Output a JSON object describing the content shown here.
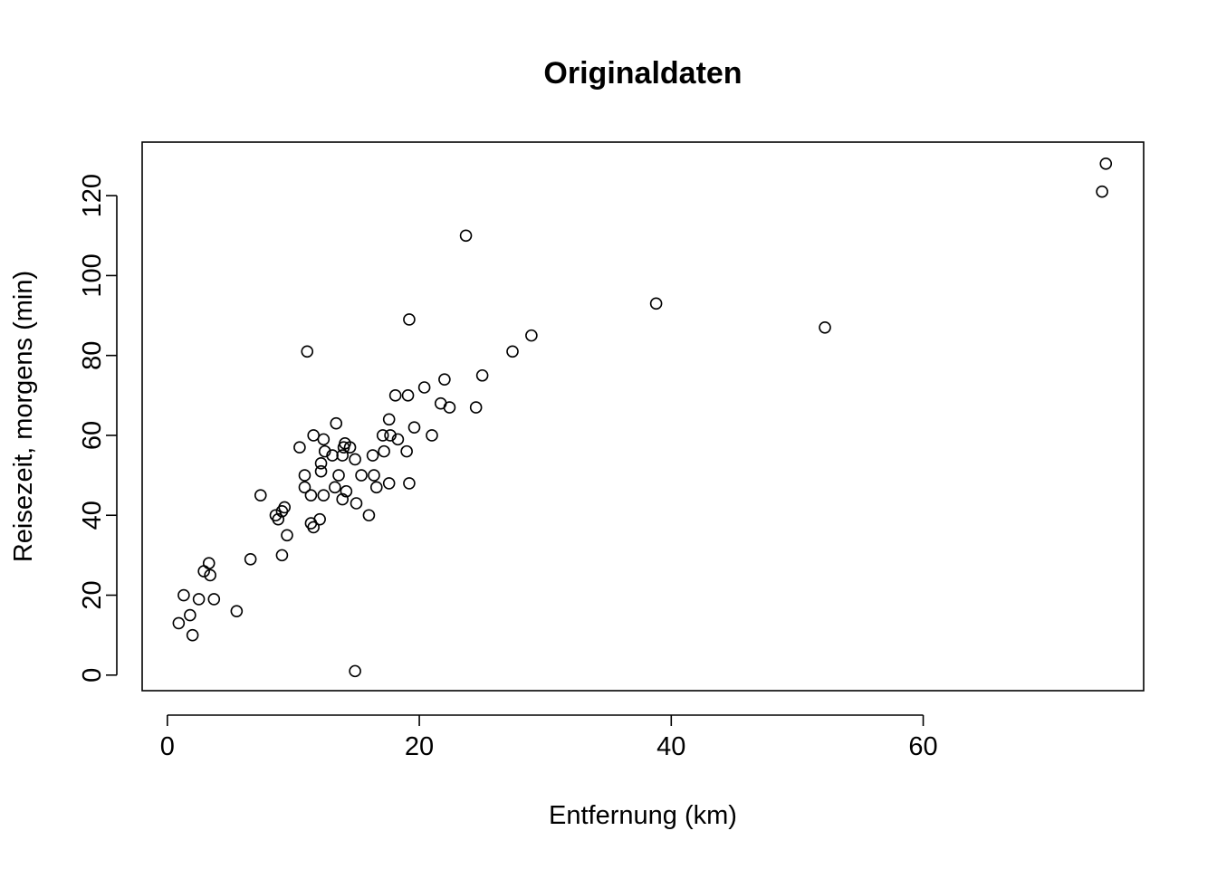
{
  "chart_data": {
    "type": "scatter",
    "title": "Originaldaten",
    "xlabel": "Entfernung (km)",
    "ylabel": "Reisezeit, morgens (min)",
    "xlim": [
      -2.0,
      77.5
    ],
    "ylim": [
      -3.9,
      133.4
    ],
    "x_ticks": [
      0,
      20,
      40,
      60
    ],
    "y_ticks": [
      0,
      20,
      40,
      60,
      80,
      100,
      120
    ],
    "grid": false,
    "legend": "none",
    "marker": "open-circle",
    "points": [
      {
        "x": 0.9,
        "y": 13
      },
      {
        "x": 1.3,
        "y": 20
      },
      {
        "x": 1.8,
        "y": 15
      },
      {
        "x": 2.0,
        "y": 10
      },
      {
        "x": 2.5,
        "y": 19
      },
      {
        "x": 2.9,
        "y": 26
      },
      {
        "x": 3.3,
        "y": 28
      },
      {
        "x": 3.4,
        "y": 25
      },
      {
        "x": 3.7,
        "y": 19
      },
      {
        "x": 5.5,
        "y": 16
      },
      {
        "x": 6.6,
        "y": 29
      },
      {
        "x": 7.4,
        "y": 45
      },
      {
        "x": 8.6,
        "y": 40
      },
      {
        "x": 8.8,
        "y": 39
      },
      {
        "x": 9.1,
        "y": 41
      },
      {
        "x": 9.1,
        "y": 30
      },
      {
        "x": 9.3,
        "y": 42
      },
      {
        "x": 9.5,
        "y": 35
      },
      {
        "x": 10.5,
        "y": 57
      },
      {
        "x": 10.9,
        "y": 50
      },
      {
        "x": 10.9,
        "y": 47
      },
      {
        "x": 11.1,
        "y": 81
      },
      {
        "x": 11.4,
        "y": 45
      },
      {
        "x": 11.4,
        "y": 38
      },
      {
        "x": 11.6,
        "y": 37
      },
      {
        "x": 11.6,
        "y": 60
      },
      {
        "x": 12.1,
        "y": 39
      },
      {
        "x": 12.2,
        "y": 51
      },
      {
        "x": 12.2,
        "y": 53
      },
      {
        "x": 12.4,
        "y": 59
      },
      {
        "x": 12.4,
        "y": 45
      },
      {
        "x": 12.5,
        "y": 56
      },
      {
        "x": 13.1,
        "y": 55
      },
      {
        "x": 13.3,
        "y": 47
      },
      {
        "x": 13.4,
        "y": 63
      },
      {
        "x": 13.6,
        "y": 50
      },
      {
        "x": 13.9,
        "y": 44
      },
      {
        "x": 13.9,
        "y": 55
      },
      {
        "x": 14.0,
        "y": 57
      },
      {
        "x": 14.1,
        "y": 58
      },
      {
        "x": 14.2,
        "y": 46
      },
      {
        "x": 14.5,
        "y": 57
      },
      {
        "x": 14.9,
        "y": 1
      },
      {
        "x": 14.9,
        "y": 54
      },
      {
        "x": 15.0,
        "y": 43
      },
      {
        "x": 15.4,
        "y": 50
      },
      {
        "x": 16.0,
        "y": 40
      },
      {
        "x": 16.3,
        "y": 55
      },
      {
        "x": 16.4,
        "y": 50
      },
      {
        "x": 16.6,
        "y": 47
      },
      {
        "x": 17.1,
        "y": 60
      },
      {
        "x": 17.2,
        "y": 56
      },
      {
        "x": 17.6,
        "y": 48
      },
      {
        "x": 17.6,
        "y": 64
      },
      {
        "x": 17.7,
        "y": 60
      },
      {
        "x": 18.1,
        "y": 70
      },
      {
        "x": 18.3,
        "y": 59
      },
      {
        "x": 19.0,
        "y": 56
      },
      {
        "x": 19.1,
        "y": 70
      },
      {
        "x": 19.2,
        "y": 89
      },
      {
        "x": 19.2,
        "y": 48
      },
      {
        "x": 19.6,
        "y": 62
      },
      {
        "x": 20.4,
        "y": 72
      },
      {
        "x": 21.0,
        "y": 60
      },
      {
        "x": 21.7,
        "y": 68
      },
      {
        "x": 22.0,
        "y": 74
      },
      {
        "x": 22.4,
        "y": 67
      },
      {
        "x": 23.7,
        "y": 110
      },
      {
        "x": 24.5,
        "y": 67
      },
      {
        "x": 25.0,
        "y": 75
      },
      {
        "x": 27.4,
        "y": 81
      },
      {
        "x": 28.9,
        "y": 85
      },
      {
        "x": 38.8,
        "y": 93
      },
      {
        "x": 52.2,
        "y": 87
      },
      {
        "x": 74.2,
        "y": 121
      },
      {
        "x": 74.5,
        "y": 128
      }
    ]
  }
}
